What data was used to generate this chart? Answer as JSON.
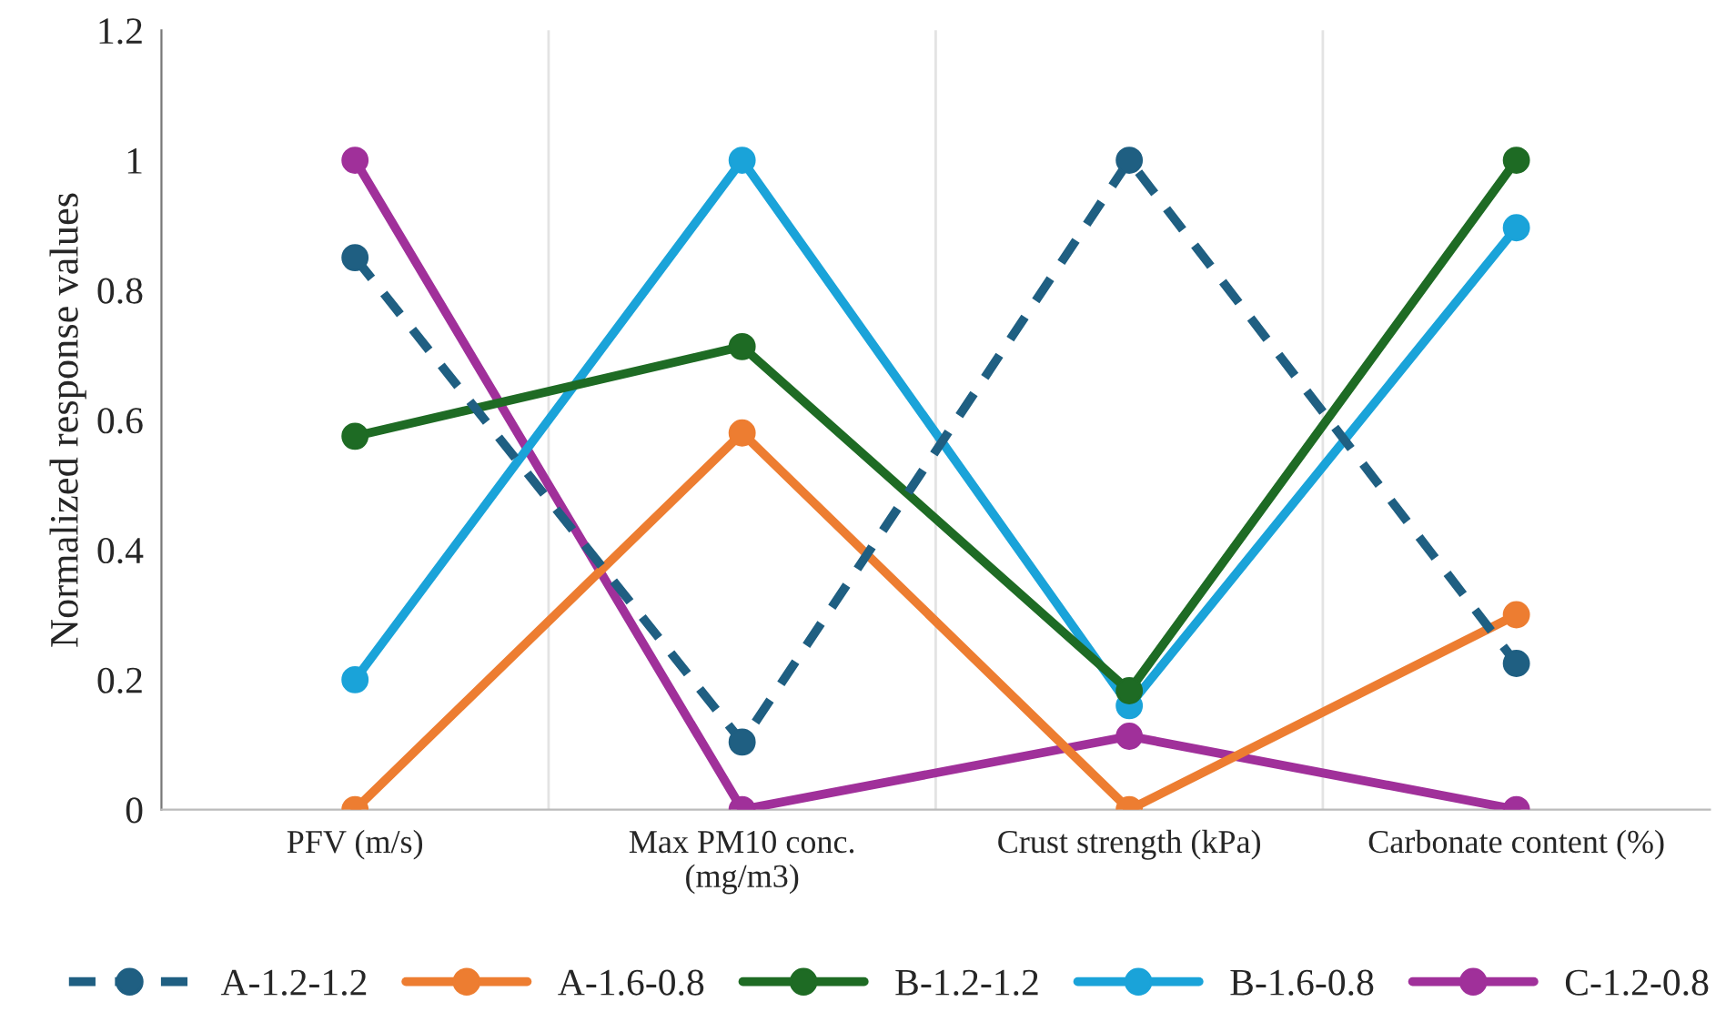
{
  "chart_data": {
    "type": "line",
    "ylabel": "Normalized response values",
    "categories": [
      "PFV (m/s)",
      "Max PM10 conc.\n(mg/m3)",
      "Crust strength (kPa)",
      "Carbonate content (%)"
    ],
    "series": [
      {
        "name": "A-1.2-1.2",
        "color": "#1f5f82",
        "line_style": "dashed",
        "values": [
          0.85,
          0.104,
          1.0,
          0.225
        ]
      },
      {
        "name": "A-1.6-0.8",
        "color": "#ed7d31",
        "values": [
          0,
          0.58,
          0,
          0.3
        ]
      },
      {
        "name": "B-1.2-1.2",
        "color": "#1e6b24",
        "values": [
          0.575,
          0.713,
          0.183,
          1.0
        ]
      },
      {
        "name": "B-1.6-0.8",
        "color": "#1aa3d9",
        "values": [
          0.2,
          1.0,
          0.16,
          0.896
        ]
      },
      {
        "name": "C-1.2-0.8",
        "color": "#a0309a",
        "values": [
          1.0,
          0,
          0.113,
          0
        ]
      }
    ],
    "ylim": [
      0,
      1.2
    ],
    "yticks": [
      0,
      0.2,
      0.4,
      0.6,
      0.8,
      1,
      1.2
    ],
    "grid": "x",
    "legend": "bottom",
    "marker": "circle",
    "line_style": "solid"
  }
}
